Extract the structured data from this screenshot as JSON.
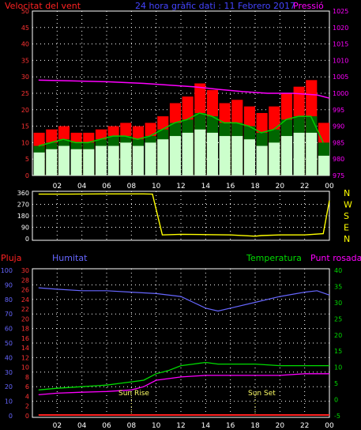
{
  "header": {
    "wind_label": "Velocitat del vent",
    "title": "24 hora gràfic dati : 11 Febrero 2017",
    "pressure_label": "Pressió"
  },
  "bottom_header": {
    "rain_label": "Pluja",
    "humidity_label": "Humitat",
    "temperature_label": "Temperatura",
    "dewpoint_label": "Punt rosada"
  },
  "annotations": {
    "sunrise": "Sun Rise",
    "sunset": "Sun Set"
  },
  "colors": {
    "wind_gust": "#ff0000",
    "wind_avg": "#00cc00",
    "wind_speed": "#ccffcc",
    "pressure": "#ff00ff",
    "direction": "#ffff00",
    "rain": "#ff2222",
    "humidity": "#6666ff",
    "temperature": "#00dd00",
    "dewpoint": "#ff00ff",
    "grid": "#ffffff"
  },
  "chart_data": [
    {
      "type": "line",
      "name": "wind-pressure",
      "x_ticks": [
        "02",
        "04",
        "06",
        "08",
        "10",
        "12",
        "14",
        "16",
        "18",
        "20",
        "22",
        "00"
      ],
      "y_left_ticks": [
        0,
        5,
        10,
        15,
        20,
        25,
        30,
        35,
        40,
        45,
        50
      ],
      "y_left_range": [
        0,
        50
      ],
      "y_right_ticks": [
        975,
        980,
        985,
        990,
        995,
        1000,
        1005,
        1010,
        1015,
        1020,
        1025
      ],
      "y_right_range": [
        975,
        1025
      ],
      "grid": true,
      "series": [
        {
          "key": "gust",
          "x": [
            1,
            2,
            3,
            4,
            5,
            6,
            7,
            8,
            9,
            10,
            11,
            12,
            13,
            14,
            15,
            16,
            17,
            18,
            19,
            20,
            21,
            22,
            23,
            24
          ],
          "values": [
            13,
            14,
            15,
            13,
            13,
            14,
            15,
            16,
            15,
            16,
            18,
            22,
            24,
            28,
            26,
            22,
            23,
            21,
            19,
            21,
            25,
            27,
            29,
            16
          ]
        },
        {
          "key": "avg",
          "x": [
            1,
            2,
            3,
            4,
            5,
            6,
            7,
            8,
            9,
            10,
            11,
            12,
            13,
            14,
            15,
            16,
            17,
            18,
            19,
            20,
            21,
            22,
            23,
            24
          ],
          "values": [
            9,
            10,
            11,
            10,
            10,
            11,
            12,
            12,
            11,
            12,
            14,
            16,
            17,
            19,
            18,
            16,
            16,
            15,
            13,
            14,
            17,
            18,
            18,
            10
          ]
        },
        {
          "key": "speed",
          "x": [
            1,
            2,
            3,
            4,
            5,
            6,
            7,
            8,
            9,
            10,
            11,
            12,
            13,
            14,
            15,
            16,
            17,
            18,
            19,
            20,
            21,
            22,
            23,
            24
          ],
          "values": [
            7,
            8,
            9,
            8,
            8,
            9,
            9,
            10,
            9,
            10,
            11,
            12,
            13,
            14,
            13,
            12,
            12,
            11,
            9,
            10,
            12,
            13,
            13,
            6
          ]
        },
        {
          "key": "pressure",
          "x": [
            0.5,
            3,
            6,
            9,
            11,
            13,
            15,
            17,
            19,
            21,
            23,
            24
          ],
          "values": [
            1004,
            1003.8,
            1003.5,
            1003,
            1002.5,
            1002,
            1001.2,
            1000.5,
            1000,
            1000,
            999.5,
            998.5
          ]
        }
      ]
    },
    {
      "type": "scatter",
      "name": "wind-direction",
      "y_ticks": [
        "360",
        "270",
        "180",
        "90",
        "0"
      ],
      "y_right_labels": [
        "N",
        "W",
        "S",
        "E",
        "N"
      ],
      "y_range": [
        0,
        360
      ],
      "grid": true,
      "series": [
        {
          "key": "direction",
          "x": [
            0.5,
            3,
            6,
            9,
            9.7,
            10.5,
            12,
            14,
            16,
            18,
            18.5,
            20,
            22,
            23.5,
            24
          ],
          "values": [
            350,
            350,
            352,
            352,
            350,
            30,
            35,
            32,
            30,
            20,
            25,
            30,
            30,
            40,
            300
          ]
        }
      ]
    },
    {
      "type": "line",
      "name": "humidity-temperature",
      "x_ticks": [
        "02",
        "04",
        "06",
        "08",
        "10",
        "12",
        "14",
        "16",
        "18",
        "20",
        "22",
        "00"
      ],
      "y_left_ticks": [
        0,
        10,
        20,
        30,
        40,
        50,
        60,
        70,
        80,
        90,
        100
      ],
      "y_left_range": [
        0,
        100
      ],
      "y_mid_ticks": [
        0,
        2,
        4,
        6,
        8,
        10,
        12,
        14,
        16,
        18,
        20,
        22,
        24,
        26,
        28,
        30
      ],
      "y_right_ticks": [
        -5,
        0,
        5,
        10,
        15,
        20,
        25,
        30,
        35,
        40
      ],
      "y_right_range": [
        -5,
        40
      ],
      "grid": true,
      "series": [
        {
          "key": "humidity",
          "x": [
            0.5,
            2,
            4,
            6,
            8,
            10,
            12,
            13,
            14,
            15,
            16,
            18,
            20,
            22,
            23,
            24
          ],
          "values": [
            88,
            87,
            86,
            86,
            85,
            84,
            82,
            78,
            74,
            72,
            74,
            78,
            82,
            85,
            86,
            83
          ]
        },
        {
          "key": "temperature",
          "x": [
            0.5,
            2,
            4,
            6,
            7,
            8,
            9,
            10,
            11,
            12,
            13,
            14,
            15,
            16,
            18,
            20,
            22,
            24
          ],
          "values": [
            3,
            3.5,
            4,
            4.5,
            5,
            5.5,
            6,
            8,
            9,
            10.5,
            11,
            11.5,
            11,
            11,
            11,
            10.5,
            10.5,
            10.5
          ]
        },
        {
          "key": "dewpoint",
          "x": [
            0.5,
            2,
            4,
            6,
            8,
            9,
            10,
            11,
            12,
            14,
            16,
            18,
            20,
            22,
            24
          ],
          "values": [
            1.5,
            2,
            2.3,
            2.5,
            3,
            4,
            6,
            6.5,
            7,
            7.5,
            7.5,
            7.5,
            7.5,
            8,
            8
          ]
        },
        {
          "key": "rain",
          "x": [
            0.5,
            24
          ],
          "values": [
            0,
            0
          ]
        }
      ],
      "sunrise_x": 8,
      "sunset_x": 18
    }
  ]
}
